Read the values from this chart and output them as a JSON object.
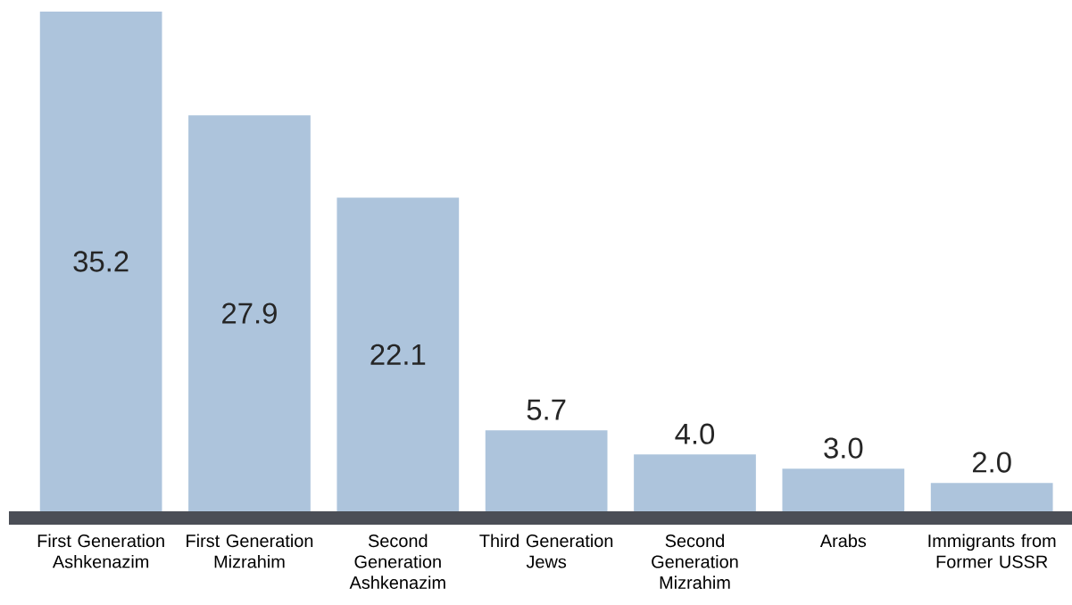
{
  "chart_data": {
    "type": "bar",
    "categories": [
      "First Generation Ashkenazim",
      "First Generation Mizrahim",
      "Second Generation Ashkenazim",
      "Third Generation Jews",
      "Second Generation Mizrahim",
      "Arabs",
      "Immigrants from Former USSR"
    ],
    "values": [
      35.2,
      27.9,
      22.1,
      5.7,
      4.0,
      3.0,
      2.0
    ],
    "color": "#adc4dc",
    "value_labels": [
      "35.2",
      "27.9",
      "22.1",
      "5.7",
      "4.0",
      "3.0",
      "2.0"
    ]
  }
}
